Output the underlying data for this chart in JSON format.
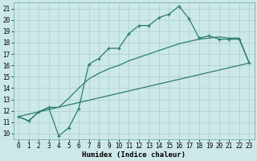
{
  "title": "",
  "xlabel": "Humidex (Indice chaleur)",
  "bg_color": "#cce8e8",
  "line_color": "#2e7d6e",
  "xlim": [
    -0.5,
    23.5
  ],
  "ylim": [
    9.5,
    21.5
  ],
  "x_ticks": [
    0,
    1,
    2,
    3,
    4,
    5,
    6,
    7,
    8,
    9,
    10,
    11,
    12,
    13,
    14,
    15,
    16,
    17,
    18,
    19,
    20,
    21,
    22,
    23
  ],
  "y_ticks": [
    10,
    11,
    12,
    13,
    14,
    15,
    16,
    17,
    18,
    19,
    20,
    21
  ],
  "line1_x": [
    0,
    1,
    2,
    3,
    4,
    5,
    6,
    7,
    8,
    9,
    10,
    11,
    12,
    13,
    14,
    15,
    16,
    17,
    18,
    19,
    20,
    21,
    22,
    23
  ],
  "line1_y": [
    11.5,
    11.1,
    11.9,
    12.3,
    9.8,
    10.5,
    12.2,
    16.1,
    16.6,
    17.5,
    17.5,
    18.8,
    19.5,
    19.5,
    20.2,
    20.5,
    21.2,
    20.1,
    18.4,
    18.6,
    18.3,
    18.3,
    18.3,
    16.2
  ],
  "line2_x": [
    0,
    1,
    2,
    3,
    4,
    5,
    6,
    7,
    8,
    9,
    10,
    11,
    12,
    13,
    14,
    15,
    16,
    17,
    18,
    19,
    20,
    21,
    22,
    23
  ],
  "line2_y": [
    11.5,
    11.1,
    11.9,
    12.3,
    12.3,
    13.1,
    14.0,
    14.8,
    15.3,
    15.7,
    16.0,
    16.4,
    16.7,
    17.0,
    17.3,
    17.6,
    17.9,
    18.1,
    18.3,
    18.4,
    18.5,
    18.4,
    18.4,
    16.2
  ],
  "line3_x": [
    0,
    23
  ],
  "line3_y": [
    11.5,
    16.2
  ],
  "grid_color": "#aacfcf",
  "spine_color": "#7ab0b0",
  "xlabel_fontsize": 6.5,
  "tick_fontsize": 5.5,
  "linewidth": 0.9,
  "marker_size": 3.5
}
